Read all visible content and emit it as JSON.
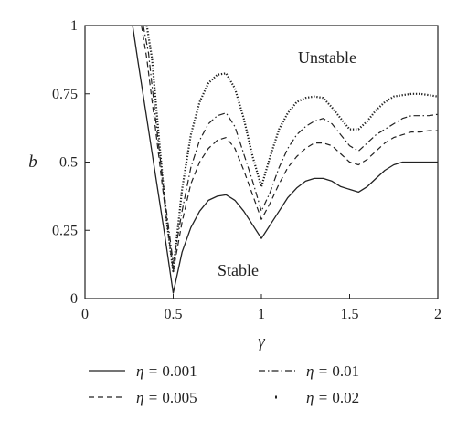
{
  "chart_data": {
    "type": "line",
    "title": "",
    "xlabel": "γ",
    "ylabel": "b",
    "xlim": [
      0,
      2
    ],
    "ylim": [
      0,
      1
    ],
    "xticks": [
      "0",
      "0.5",
      "1",
      "1.5",
      "2"
    ],
    "yticks": [
      "0",
      "0.25",
      "0.5",
      "0.75",
      "1"
    ],
    "grid": false,
    "annotations": [
      {
        "text": "Unstable",
        "x": 1.42,
        "y": 0.88
      },
      {
        "text": "Stable",
        "x": 0.74,
        "y": 0.2
      }
    ],
    "legend": {
      "placement": "bottom"
    },
    "series": [
      {
        "name": "0.001",
        "style": "solid",
        "x": [
          0.27,
          0.3,
          0.35,
          0.4,
          0.45,
          0.5,
          0.55,
          0.6,
          0.65,
          0.7,
          0.75,
          0.8,
          0.85,
          0.9,
          0.95,
          1.0,
          1.05,
          1.1,
          1.15,
          1.2,
          1.25,
          1.3,
          1.35,
          1.4,
          1.45,
          1.5,
          1.55,
          1.6,
          1.65,
          1.7,
          1.75,
          1.8,
          1.85,
          1.9,
          1.95,
          2.0
        ],
        "y": [
          1.0,
          0.87,
          0.66,
          0.45,
          0.24,
          0.02,
          0.17,
          0.26,
          0.32,
          0.36,
          0.375,
          0.38,
          0.36,
          0.32,
          0.27,
          0.22,
          0.27,
          0.32,
          0.37,
          0.405,
          0.43,
          0.44,
          0.44,
          0.43,
          0.41,
          0.4,
          0.39,
          0.41,
          0.44,
          0.47,
          0.49,
          0.5,
          0.5,
          0.5,
          0.5,
          0.5
        ]
      },
      {
        "name": "0.005",
        "style": "dashed",
        "x": [
          0.32,
          0.35,
          0.4,
          0.45,
          0.5,
          0.55,
          0.6,
          0.65,
          0.7,
          0.75,
          0.8,
          0.85,
          0.9,
          0.95,
          1.0,
          1.05,
          1.1,
          1.15,
          1.2,
          1.25,
          1.3,
          1.35,
          1.4,
          1.45,
          1.5,
          1.55,
          1.6,
          1.65,
          1.7,
          1.75,
          1.8,
          1.85,
          1.9,
          1.95,
          2.0
        ],
        "y": [
          1.0,
          0.88,
          0.62,
          0.35,
          0.1,
          0.28,
          0.42,
          0.5,
          0.55,
          0.58,
          0.59,
          0.55,
          0.47,
          0.38,
          0.29,
          0.35,
          0.42,
          0.48,
          0.52,
          0.55,
          0.57,
          0.57,
          0.56,
          0.53,
          0.5,
          0.49,
          0.51,
          0.54,
          0.57,
          0.59,
          0.6,
          0.61,
          0.61,
          0.615,
          0.615
        ]
      },
      {
        "name": "0.01",
        "style": "dashdot",
        "x": [
          0.33,
          0.36,
          0.4,
          0.45,
          0.5,
          0.55,
          0.6,
          0.65,
          0.7,
          0.75,
          0.8,
          0.85,
          0.9,
          0.95,
          1.0,
          1.05,
          1.1,
          1.15,
          1.2,
          1.25,
          1.3,
          1.35,
          1.4,
          1.45,
          1.5,
          1.55,
          1.6,
          1.65,
          1.7,
          1.75,
          1.8,
          1.85,
          1.9,
          1.95,
          2.0
        ],
        "y": [
          1.0,
          0.9,
          0.66,
          0.38,
          0.13,
          0.32,
          0.48,
          0.58,
          0.64,
          0.67,
          0.68,
          0.63,
          0.53,
          0.43,
          0.32,
          0.39,
          0.48,
          0.55,
          0.6,
          0.63,
          0.65,
          0.66,
          0.64,
          0.6,
          0.56,
          0.54,
          0.57,
          0.6,
          0.62,
          0.64,
          0.66,
          0.67,
          0.67,
          0.67,
          0.675
        ]
      },
      {
        "name": "0.02",
        "style": "dotted",
        "x": [
          0.35,
          0.38,
          0.42,
          0.46,
          0.5,
          0.55,
          0.6,
          0.65,
          0.7,
          0.75,
          0.8,
          0.85,
          0.9,
          0.95,
          1.0,
          1.05,
          1.1,
          1.15,
          1.2,
          1.25,
          1.3,
          1.35,
          1.4,
          1.45,
          1.5,
          1.55,
          1.6,
          1.65,
          1.7,
          1.75,
          1.8,
          1.85,
          1.9,
          1.95,
          2.0
        ],
        "y": [
          1.0,
          0.88,
          0.58,
          0.3,
          0.1,
          0.4,
          0.6,
          0.72,
          0.79,
          0.82,
          0.825,
          0.77,
          0.66,
          0.52,
          0.41,
          0.52,
          0.62,
          0.68,
          0.72,
          0.735,
          0.74,
          0.735,
          0.7,
          0.66,
          0.62,
          0.62,
          0.65,
          0.69,
          0.72,
          0.74,
          0.745,
          0.75,
          0.75,
          0.745,
          0.74
        ]
      }
    ]
  },
  "legend_prefix": "η = "
}
